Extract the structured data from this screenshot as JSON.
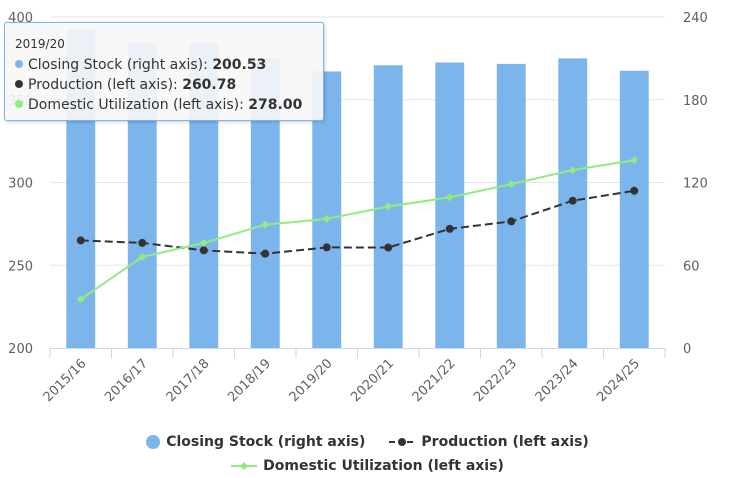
{
  "chart_data": {
    "type": "bar-line-combo",
    "categories": [
      "2015/16",
      "2016/17",
      "2017/18",
      "2018/19",
      "2019/20",
      "2020/21",
      "2021/22",
      "2022/23",
      "2023/24",
      "2024/25"
    ],
    "left_axis": {
      "min": 200,
      "max": 400,
      "ticks": [
        200,
        250,
        300,
        350,
        400
      ]
    },
    "right_axis": {
      "min": 0,
      "max": 240,
      "ticks": [
        0,
        60,
        120,
        180,
        240
      ]
    },
    "series": [
      {
        "name": "Closing Stock (right axis)",
        "type": "bar",
        "axis": "right",
        "color": "#7cb5ec",
        "values": [
          231,
          221,
          221,
          210,
          200.53,
          205,
          207,
          206,
          210,
          201
        ]
      },
      {
        "name": "Production (left axis)",
        "type": "line",
        "axis": "left",
        "color": "#333333",
        "dashed": true,
        "values": [
          265,
          263.5,
          259,
          257,
          260.78,
          260.7,
          272,
          276.5,
          289,
          295
        ]
      },
      {
        "name": "Domestic Utilization (left axis)",
        "type": "line",
        "axis": "left",
        "color": "#90ed7d",
        "dashed": false,
        "values": [
          229.5,
          255,
          263.5,
          274.5,
          278,
          285.5,
          291,
          299,
          307.5,
          313.5
        ]
      }
    ],
    "legend_position": "bottom"
  },
  "tooltip": {
    "header": "2019/20",
    "rows": [
      {
        "label": "Closing Stock (right axis): ",
        "value": "200.53",
        "color": "#7cb5ec"
      },
      {
        "label": "Production (left axis): ",
        "value": "260.78",
        "color": "#333333"
      },
      {
        "label": "Domestic Utilization (left axis): ",
        "value": "278.00",
        "color": "#90ed7d"
      }
    ]
  }
}
